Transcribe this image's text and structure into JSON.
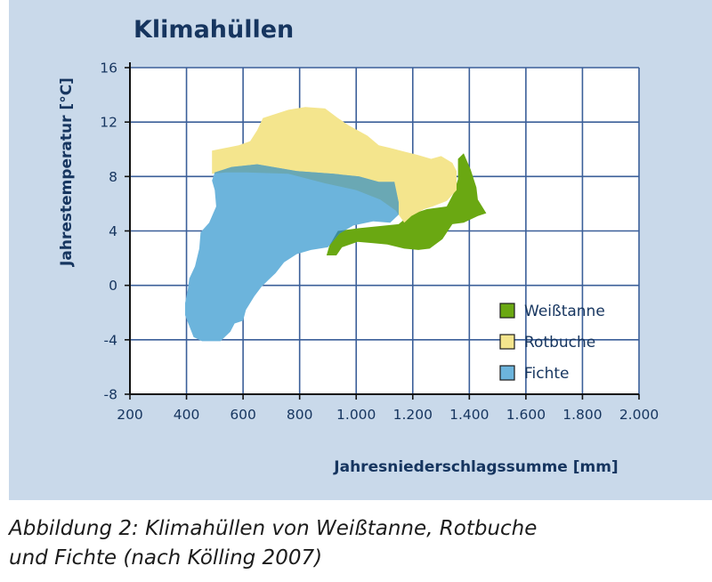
{
  "title": "Klimahüllen",
  "caption": {
    "line1": "Abbildung 2: Klimahüllen von Weißtanne, Rotbuche",
    "line2": "und Fichte (nach Kölling 2007)"
  },
  "chart_data": {
    "type": "area",
    "title": "Klimahüllen",
    "xlabel": "Jahresniederschlagssumme [mm]",
    "ylabel": "Jahrestemperatur [°C]",
    "xlim": [
      200,
      2000
    ],
    "ylim": [
      -8,
      16
    ],
    "x_ticks": [
      200,
      400,
      600,
      800,
      1000,
      1200,
      1400,
      1600,
      1800,
      2000
    ],
    "x_tick_labels": [
      "200",
      "400",
      "600",
      "800",
      "1.000",
      "1.200",
      "1.400",
      "1.600",
      "1.800",
      "2.000"
    ],
    "y_ticks": [
      -8,
      -4,
      0,
      4,
      8,
      12,
      16
    ],
    "y_tick_labels": [
      "-8",
      "-4",
      "0",
      "4",
      "8",
      "12",
      "16"
    ],
    "grid": true,
    "legend_position": "bottom-right",
    "series": [
      {
        "name": "Weißtanne",
        "color": "#6aa812",
        "points": [
          [
            1010,
            4.2
          ],
          [
            1150,
            4.5
          ],
          [
            1190,
            5.2
          ],
          [
            1250,
            5.6
          ],
          [
            1320,
            5.8
          ],
          [
            1345,
            6.8
          ],
          [
            1360,
            7.8
          ],
          [
            1360,
            9.3
          ],
          [
            1380,
            9.7
          ],
          [
            1405,
            8.5
          ],
          [
            1425,
            7.2
          ],
          [
            1430,
            6.3
          ],
          [
            1460,
            5.3
          ],
          [
            1430,
            5.1
          ],
          [
            1380,
            4.6
          ],
          [
            1340,
            4.5
          ],
          [
            1305,
            3.4
          ],
          [
            1260,
            2.7
          ],
          [
            1220,
            2.6
          ],
          [
            1170,
            2.7
          ],
          [
            1110,
            3.0
          ],
          [
            1060,
            3.1
          ],
          [
            1005,
            3.2
          ],
          [
            950,
            2.8
          ],
          [
            930,
            2.2
          ],
          [
            895,
            2.2
          ],
          [
            905,
            2.9
          ],
          [
            935,
            4.0
          ]
        ]
      },
      {
        "name": "Rotbuche",
        "color": "#f4e58d",
        "points": [
          [
            490,
            9.9
          ],
          [
            585,
            10.3
          ],
          [
            625,
            10.6
          ],
          [
            650,
            11.4
          ],
          [
            670,
            12.3
          ],
          [
            760,
            12.9
          ],
          [
            820,
            13.1
          ],
          [
            890,
            13.0
          ],
          [
            935,
            12.3
          ],
          [
            970,
            11.8
          ],
          [
            1040,
            11.0
          ],
          [
            1080,
            10.3
          ],
          [
            1120,
            10.1
          ],
          [
            1175,
            9.8
          ],
          [
            1215,
            9.6
          ],
          [
            1265,
            9.3
          ],
          [
            1300,
            9.5
          ],
          [
            1340,
            9.0
          ],
          [
            1355,
            8.4
          ],
          [
            1355,
            7.0
          ],
          [
            1320,
            6.2
          ],
          [
            1270,
            5.8
          ],
          [
            1240,
            5.6
          ],
          [
            1195,
            5.1
          ],
          [
            1170,
            4.6
          ],
          [
            1140,
            5.5
          ],
          [
            1085,
            6.3
          ],
          [
            1000,
            7.0
          ],
          [
            890,
            7.5
          ],
          [
            760,
            8.2
          ],
          [
            610,
            8.3
          ],
          [
            540,
            8.3
          ],
          [
            490,
            8.2
          ]
        ]
      },
      {
        "name": "Fichte",
        "color": "#6cb4dc",
        "points": [
          [
            500,
            8.3
          ],
          [
            560,
            8.7
          ],
          [
            650,
            8.9
          ],
          [
            790,
            8.4
          ],
          [
            920,
            8.2
          ],
          [
            1010,
            8.0
          ],
          [
            1080,
            7.6
          ],
          [
            1135,
            7.6
          ],
          [
            1150,
            6.1
          ],
          [
            1150,
            5.2
          ],
          [
            1120,
            4.6
          ],
          [
            1060,
            4.7
          ],
          [
            990,
            4.4
          ],
          [
            940,
            3.8
          ],
          [
            900,
            2.8
          ],
          [
            840,
            2.6
          ],
          [
            790,
            2.3
          ],
          [
            745,
            1.7
          ],
          [
            715,
            0.9
          ],
          [
            690,
            0.4
          ],
          [
            665,
            -0.1
          ],
          [
            640,
            -0.8
          ],
          [
            610,
            -1.8
          ],
          [
            600,
            -2.6
          ],
          [
            570,
            -2.8
          ],
          [
            555,
            -3.4
          ],
          [
            520,
            -4.1
          ],
          [
            455,
            -4.1
          ],
          [
            425,
            -3.8
          ],
          [
            395,
            -2.2
          ],
          [
            395,
            -1.3
          ],
          [
            405,
            -0.3
          ],
          [
            410,
            0.5
          ],
          [
            430,
            1.4
          ],
          [
            445,
            2.7
          ],
          [
            450,
            3.9
          ],
          [
            480,
            4.6
          ],
          [
            505,
            5.8
          ],
          [
            500,
            7.0
          ],
          [
            490,
            7.7
          ]
        ]
      }
    ]
  },
  "colors": {
    "panel_background": "#c9d9ea",
    "plot_background": "#ffffff",
    "grid": "#3b5f99",
    "text": "#16355f",
    "rotbuche_fichte_overlap": "#6aa8b4",
    "weisstanne_fichte_overlap": "#3c8c9a"
  }
}
